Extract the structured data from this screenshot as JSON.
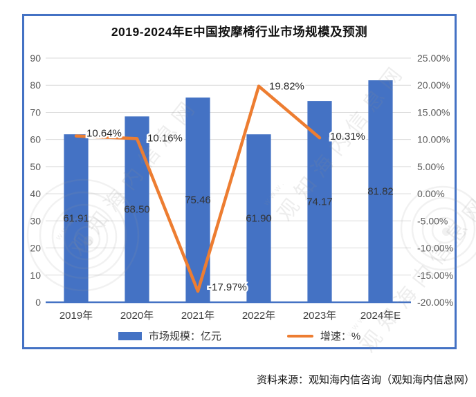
{
  "title": "2019-2024年E中国按摩椅行业市场规模及预测",
  "source_note": "资料来源：观知海内信咨询（观知海内信息网）",
  "watermark": {
    "text": "观知海内信息网",
    "url_text": "www."
  },
  "legend": [
    {
      "label": "市场规模：亿元"
    },
    {
      "label": "增速：%"
    }
  ],
  "colors": {
    "bar": "#4472C4",
    "line": "#ED7D31",
    "frame": "#4472C4",
    "grid": "#D9D9D9",
    "axis": "#4472C4",
    "tick_text": "#595959"
  },
  "chart_data": {
    "type": "bar",
    "subtype": "bar+line combo",
    "title": "2019-2024年E中国按摩椅行业市场规模及预测",
    "categories": [
      "2019年",
      "2020年",
      "2021年",
      "2022年",
      "2023年",
      "2024年E"
    ],
    "series": [
      {
        "name": "市场规模：亿元",
        "type": "bar",
        "axis": "left",
        "color": "#4472C4",
        "values": [
          61.91,
          68.5,
          75.46,
          61.9,
          74.17,
          81.82
        ],
        "labels": [
          "61.91",
          "68.50",
          "75.46",
          "61.90",
          "74.17",
          "81.82"
        ]
      },
      {
        "name": "增速：%",
        "type": "line",
        "axis": "right",
        "color": "#ED7D31",
        "values": [
          10.64,
          10.16,
          -17.97,
          19.82,
          10.31,
          null
        ],
        "labels": [
          "10.64%",
          "10.16%",
          "-17.97%",
          "19.82%",
          "10.31%",
          ""
        ]
      }
    ],
    "left_axis": {
      "min": 0,
      "max": 90,
      "step": 10,
      "ticks": [
        "0",
        "10",
        "20",
        "30",
        "40",
        "50",
        "60",
        "70",
        "80",
        "90"
      ]
    },
    "right_axis": {
      "min": -20,
      "max": 25,
      "step": 5,
      "ticks": [
        "-20.00%",
        "-15.00%",
        "-10.00%",
        "-5.00%",
        "0.00%",
        "5.00%",
        "10.00%",
        "15.00%",
        "20.00%",
        "25.00%"
      ]
    },
    "grid": true,
    "legend_position": "bottom"
  }
}
